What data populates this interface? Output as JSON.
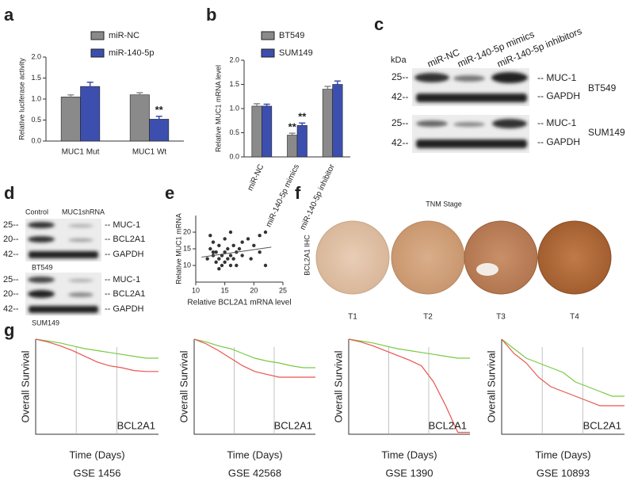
{
  "chart_data": [
    {
      "type": "bar",
      "panel": "a",
      "ylabel": "Relative luciferase activity",
      "categories": [
        "MUC1 Mut",
        "MUC1 Wt"
      ],
      "series": [
        {
          "name": "miR-NC",
          "color": "#8a8a8a",
          "values": [
            1.05,
            1.1
          ],
          "errors": [
            0.05,
            0.05
          ]
        },
        {
          "name": "miR-140-5p",
          "color": "#3d4fae",
          "values": [
            1.3,
            0.52
          ],
          "errors": [
            0.1,
            0.07
          ]
        }
      ],
      "ylim": [
        0,
        2
      ],
      "yticks": [
        {
          "value": 0,
          "label": "0.0"
        },
        {
          "value": 0.5,
          "label": "0.5"
        },
        {
          "value": 1,
          "label": "1.0"
        },
        {
          "value": 1.5,
          "label": "1.5"
        },
        {
          "value": 2,
          "label": "2.0"
        }
      ],
      "annotations": [
        "**"
      ]
    },
    {
      "type": "bar",
      "panel": "b",
      "ylabel": "Relative MUC1 mRNA level",
      "categories": [
        "miR-NC",
        "miR-140-5p mimics",
        "miR-140-5p inhibitor"
      ],
      "series": [
        {
          "name": "BT549",
          "color": "#8a8a8a",
          "values": [
            1.05,
            0.45,
            1.4
          ],
          "errors": [
            0.05,
            0.04,
            0.06
          ]
        },
        {
          "name": "SUM149",
          "color": "#3d4fae",
          "values": [
            1.05,
            0.65,
            1.5
          ],
          "errors": [
            0.04,
            0.05,
            0.07
          ]
        }
      ],
      "ylim": [
        0,
        2
      ],
      "yticks": [
        {
          "value": 0,
          "label": "0.0"
        },
        {
          "value": 0.5,
          "label": "0.5"
        },
        {
          "value": 1,
          "label": "1.0"
        },
        {
          "value": 1.5,
          "label": "1.5"
        },
        {
          "value": 2,
          "label": "2.0"
        }
      ],
      "annotations": [
        "**",
        "**"
      ]
    },
    {
      "type": "scatter",
      "panel": "e",
      "xlabel": "Relative BCL2A1 mRNA level",
      "ylabel": "Relative MUC1 mRNA",
      "color": "#333333",
      "x": [
        12,
        12.5,
        13,
        13,
        13.5,
        13.5,
        14,
        14,
        14.5,
        14.5,
        15,
        15,
        15,
        15.5,
        15.5,
        16,
        16,
        16.5,
        16.5,
        17,
        17,
        17.5,
        18,
        18,
        19,
        19.5,
        20,
        21,
        21,
        22,
        22,
        12.5,
        14,
        16,
        13
      ],
      "y": [
        12,
        15,
        13,
        17,
        11,
        14,
        12,
        16,
        13,
        10,
        18,
        14,
        11,
        12,
        15,
        13,
        20,
        12,
        16,
        14,
        10,
        15,
        13,
        17,
        18,
        12,
        16,
        14,
        19,
        20,
        10,
        19,
        9,
        10,
        14
      ],
      "fit": {
        "x": [
          11,
          23
        ],
        "y": [
          12.5,
          15.5
        ]
      },
      "xlim": [
        10,
        25
      ],
      "xticks": [
        10,
        15,
        20,
        25
      ],
      "ylim": [
        5,
        25
      ],
      "yticks": [
        10,
        15,
        20
      ]
    },
    {
      "type": "line",
      "title": "GSE 1456",
      "xlabel": "Time (Days)",
      "ylabel": "Overall Survival",
      "annotation": "BCL2A1",
      "x": [
        0,
        10,
        20,
        30,
        40,
        50,
        60,
        70,
        80,
        90,
        100
      ],
      "xlim": [
        0,
        100
      ],
      "ylim": [
        0,
        1
      ],
      "series": [
        {
          "color": "#7ac943",
          "values": [
            1,
            0.98,
            0.96,
            0.93,
            0.9,
            0.88,
            0.86,
            0.84,
            0.82,
            0.8,
            0.8
          ]
        },
        {
          "color": "#e8554e",
          "values": [
            1,
            0.97,
            0.93,
            0.88,
            0.82,
            0.76,
            0.72,
            0.7,
            0.67,
            0.66,
            0.66
          ]
        }
      ]
    },
    {
      "type": "line",
      "title": "GSE 42568",
      "xlabel": "Time (Days)",
      "ylabel": "Overall Survival",
      "annotation": "BCL2A1",
      "x": [
        0,
        10,
        20,
        30,
        40,
        50,
        60,
        70,
        80,
        90,
        100
      ],
      "xlim": [
        0,
        100
      ],
      "ylim": [
        0,
        1
      ],
      "series": [
        {
          "color": "#7ac943",
          "values": [
            1,
            0.97,
            0.93,
            0.9,
            0.85,
            0.8,
            0.77,
            0.75,
            0.72,
            0.7,
            0.7
          ]
        },
        {
          "color": "#e8554e",
          "values": [
            1,
            0.95,
            0.88,
            0.8,
            0.72,
            0.66,
            0.63,
            0.6,
            0.6,
            0.6,
            0.6
          ]
        }
      ]
    },
    {
      "type": "line",
      "title": "GSE 1390",
      "xlabel": "Time (Days)",
      "ylabel": "Overall Survival",
      "annotation": "BCL2A1",
      "x": [
        0,
        10,
        20,
        30,
        40,
        50,
        60,
        70,
        80,
        90,
        100
      ],
      "xlim": [
        0,
        100
      ],
      "ylim": [
        0,
        1
      ],
      "series": [
        {
          "color": "#7ac943",
          "values": [
            1,
            0.98,
            0.96,
            0.93,
            0.9,
            0.88,
            0.86,
            0.84,
            0.82,
            0.8,
            0.8
          ]
        },
        {
          "color": "#e8554e",
          "values": [
            1,
            0.97,
            0.93,
            0.88,
            0.83,
            0.78,
            0.72,
            0.55,
            0.3,
            0.02,
            0.02
          ]
        }
      ]
    },
    {
      "type": "line",
      "title": "GSE 10893",
      "xlabel": "Time (Days)",
      "ylabel": "Overall Survival",
      "annotation": "BCL2A1",
      "x": [
        0,
        10,
        20,
        30,
        40,
        50,
        60,
        70,
        80,
        90,
        100
      ],
      "xlim": [
        0,
        100
      ],
      "ylim": [
        0,
        1
      ],
      "series": [
        {
          "color": "#7ac943",
          "values": [
            1,
            0.9,
            0.8,
            0.75,
            0.7,
            0.65,
            0.55,
            0.5,
            0.45,
            0.4,
            0.4
          ]
        },
        {
          "color": "#e8554e",
          "values": [
            1,
            0.85,
            0.75,
            0.6,
            0.5,
            0.45,
            0.4,
            0.35,
            0.3,
            0.3,
            0.3
          ]
        }
      ]
    }
  ],
  "blot_c": {
    "panel": "c",
    "kda": "kDa",
    "lanes": [
      "miR-NC",
      "miR-140-5p mimics",
      "miR-140-5p inhibitors"
    ],
    "markers": [
      "25--",
      "42--",
      "25--",
      "42--"
    ],
    "bands": [
      "-- MUC-1",
      "-- GAPDH",
      "-- MUC-1",
      "-- GAPDH"
    ],
    "cells": [
      "BT549",
      "SUM149"
    ]
  },
  "blot_d": {
    "panel": "d",
    "lanes": [
      "Control",
      "MUC1shRNA"
    ],
    "markers": [
      "25--",
      "20--",
      "42--",
      "25--",
      "20--",
      "42--"
    ],
    "bands": [
      "-- MUC-1",
      "-- BCL2A1",
      "-- GAPDH",
      "-- MUC-1",
      "-- BCL2A1",
      "-- GAPDH"
    ],
    "cells": [
      "BT549",
      "SUM149"
    ]
  },
  "ihc_f": {
    "panel": "f",
    "title": "TNM Stage",
    "ylabel": "BCL2A1 IHC",
    "stages": [
      "T1",
      "T2",
      "T3",
      "T4"
    ]
  },
  "panel_g": "g"
}
